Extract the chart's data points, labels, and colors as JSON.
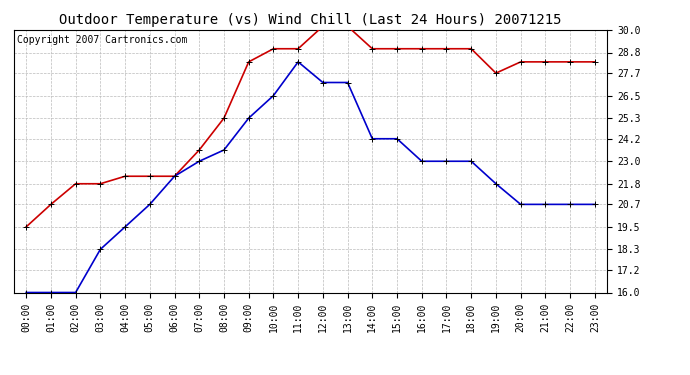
{
  "title": "Outdoor Temperature (vs) Wind Chill (Last 24 Hours) 20071215",
  "copyright_text": "Copyright 2007 Cartronics.com",
  "x_labels": [
    "00:00",
    "01:00",
    "02:00",
    "03:00",
    "04:00",
    "05:00",
    "06:00",
    "07:00",
    "08:00",
    "09:00",
    "10:00",
    "11:00",
    "12:00",
    "13:00",
    "14:00",
    "15:00",
    "16:00",
    "17:00",
    "18:00",
    "19:00",
    "20:00",
    "21:00",
    "22:00",
    "23:00"
  ],
  "red_data": [
    19.5,
    20.7,
    21.8,
    21.8,
    22.2,
    22.2,
    22.2,
    23.6,
    25.3,
    28.3,
    29.0,
    29.0,
    30.2,
    30.2,
    29.0,
    29.0,
    29.0,
    29.0,
    29.0,
    27.7,
    28.3,
    28.3,
    28.3,
    28.3
  ],
  "blue_data": [
    16.0,
    16.0,
    16.0,
    18.3,
    19.5,
    20.7,
    22.2,
    23.0,
    23.6,
    25.3,
    26.5,
    28.3,
    27.2,
    27.2,
    24.2,
    24.2,
    23.0,
    23.0,
    23.0,
    21.8,
    20.7,
    20.7,
    20.7,
    20.7
  ],
  "red_color": "#cc0000",
  "blue_color": "#0000cc",
  "background_color": "#ffffff",
  "plot_bg_color": "#ffffff",
  "grid_color": "#bbbbbb",
  "y_min": 16.0,
  "y_max": 30.0,
  "y_ticks": [
    16.0,
    17.2,
    18.3,
    19.5,
    20.7,
    21.8,
    23.0,
    24.2,
    25.3,
    26.5,
    27.7,
    28.8,
    30.0
  ],
  "title_fontsize": 10,
  "copyright_fontsize": 7,
  "tick_fontsize": 7,
  "marker": "+",
  "marker_size": 4,
  "line_width": 1.2
}
